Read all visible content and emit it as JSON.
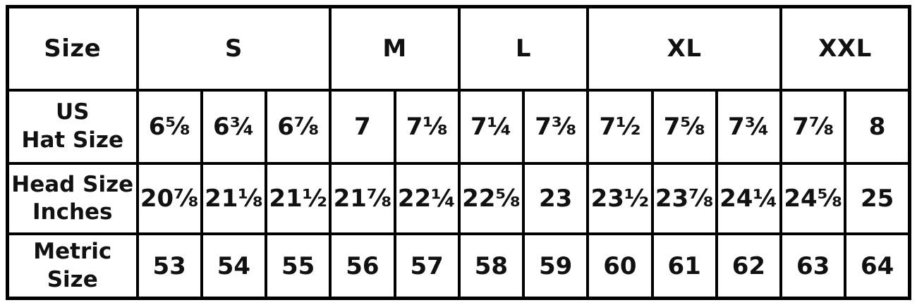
{
  "chart_data": {
    "type": "table",
    "header": {
      "size_label": "Size",
      "groups": [
        {
          "label": "S",
          "colspan": 3
        },
        {
          "label": "M",
          "colspan": 2
        },
        {
          "label": "L",
          "colspan": 2
        },
        {
          "label": "XL",
          "colspan": 3
        },
        {
          "label": "XXL",
          "colspan": 2
        }
      ]
    },
    "rows": [
      {
        "label": "US Hat Size",
        "label_lines": [
          "US",
          "Hat Size"
        ],
        "values": [
          "6⅝",
          "6¾",
          "6⅞",
          "7",
          "7⅛",
          "7¼",
          "7⅜",
          "7½",
          "7⅝",
          "7¾",
          "7⅞",
          "8"
        ]
      },
      {
        "label": "Head Size Inches",
        "label_lines": [
          "Head Size",
          "Inches"
        ],
        "values": [
          "20⅞",
          "21⅛",
          "21½",
          "21⅞",
          "22¼",
          "22⅝",
          "23",
          "23½",
          "23⅞",
          "24¼",
          "24⅝",
          "25"
        ]
      },
      {
        "label": "Metric Size",
        "label_lines": [
          "Metric",
          "Size"
        ],
        "values": [
          "53",
          "54",
          "55",
          "56",
          "57",
          "58",
          "59",
          "60",
          "61",
          "62",
          "63",
          "64"
        ]
      }
    ],
    "colors": {
      "border": "#000000",
      "text": "#111111",
      "background": "#ffffff"
    }
  }
}
